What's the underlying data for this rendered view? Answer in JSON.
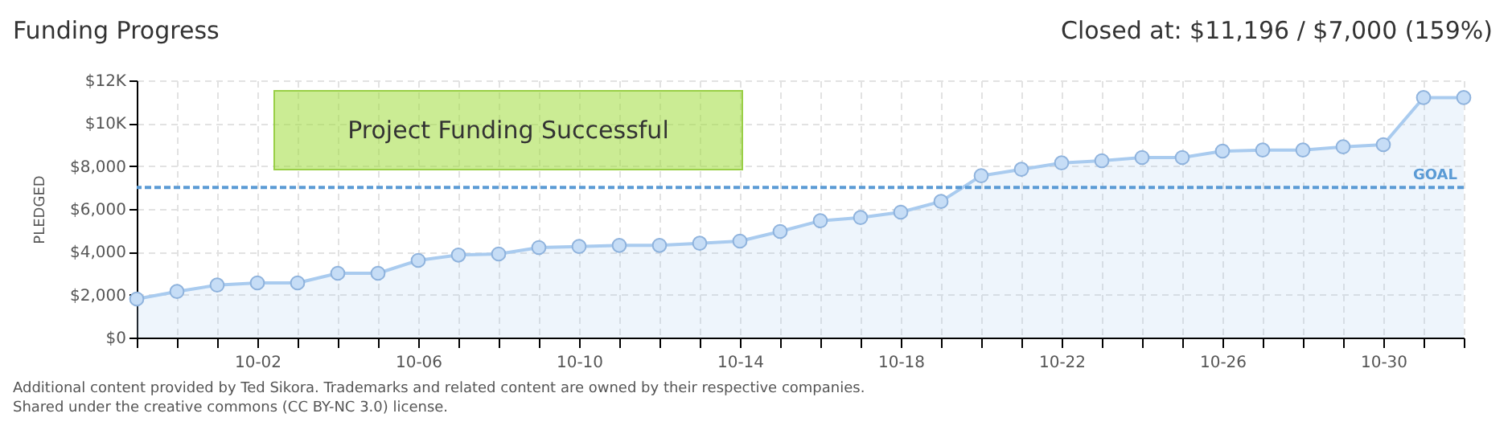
{
  "chart_data": {
    "type": "area",
    "title": "Funding Progress",
    "ylabel": "PLEDGED",
    "categories": [
      null,
      null,
      null,
      "10-02",
      null,
      null,
      null,
      "10-06",
      null,
      null,
      null,
      "10-10",
      null,
      null,
      null,
      "10-14",
      null,
      null,
      null,
      "10-18",
      null,
      null,
      null,
      "10-22",
      null,
      null,
      null,
      "10-26",
      null,
      null,
      null,
      "10-30",
      null,
      null
    ],
    "series": [
      {
        "color": "#a9cbef",
        "values": [
          1800,
          2150,
          2450,
          2550,
          2550,
          3000,
          3000,
          3600,
          3850,
          3900,
          4200,
          4250,
          4300,
          4300,
          4400,
          4500,
          4950,
          5450,
          5600,
          5850,
          6350,
          7550,
          7850,
          8150,
          8250,
          8400,
          8400,
          8700,
          8750,
          8750,
          8900,
          9000,
          11196,
          11196
        ]
      }
    ],
    "ylim": [
      0,
      12000
    ],
    "yticks": [
      {
        "value": 0,
        "label": "$0"
      },
      {
        "value": 2000,
        "label": "$2,000"
      },
      {
        "value": 4000,
        "label": "$4,000"
      },
      {
        "value": 6000,
        "label": "$6,000"
      },
      {
        "value": 8000,
        "label": "$8,000"
      },
      {
        "value": 10000,
        "label": "$10K"
      },
      {
        "value": 12000,
        "label": "$12K"
      }
    ],
    "grid": true,
    "marker": "circle",
    "ref_lines": [
      {
        "axis": "y",
        "value": 7000,
        "label": "GOAL",
        "color": "#5b9bd5",
        "line_style": "dashed"
      }
    ],
    "annotations": [
      "Project Funding Successful",
      "Closed at: $11,196 / $7,000 (159%)",
      "Additional content provided by Ted Sikora. Trademarks and related content are owned by their respective companies.",
      "Shared under the creative commons (CC BY-NC 3.0) license."
    ]
  }
}
